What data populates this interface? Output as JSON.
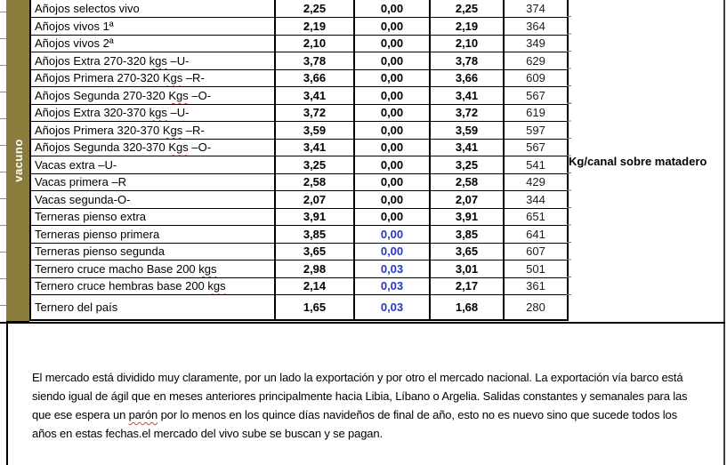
{
  "sidebar": {
    "category_label": "vacuno"
  },
  "table": {
    "rows": [
      {
        "label": "Añojos selectos vivo",
        "price": "2,25",
        "diff": "0,00",
        "diff_blue": false,
        "price2": "2,25",
        "weight": "374"
      },
      {
        "label": "Añojos vivos 1ª",
        "price": "2,19",
        "diff": "0,00",
        "diff_blue": false,
        "price2": "2,19",
        "weight": "364"
      },
      {
        "label": "Añojos vivos 2ª",
        "price": "2,10",
        "diff": "0,00",
        "diff_blue": false,
        "price2": "2,10",
        "weight": "349"
      },
      {
        "label": "Añojos Extra 270-320 kgs –U-",
        "price": "3,78",
        "diff": "0,00",
        "diff_blue": false,
        "price2": "3,78",
        "weight": "629"
      },
      {
        "label": "Añojos Primera 270-320 Kgs –R-",
        "price": "3,66",
        "diff": "0,00",
        "diff_blue": false,
        "price2": "3,66",
        "weight": "609"
      },
      {
        "label": "Añojos Segunda 270-320 Kgs –O-",
        "price": "3,41",
        "diff": "0,00",
        "diff_blue": false,
        "price2": "3,41",
        "weight": "567"
      },
      {
        "label": "Añojos Extra 320-370 kgs –U-",
        "price": "3,72",
        "diff": "0,00",
        "diff_blue": false,
        "price2": "3,72",
        "weight": "619"
      },
      {
        "label": "Añojos Primera 320-370 Kgs –R-",
        "price": "3,59",
        "diff": "0,00",
        "diff_blue": false,
        "price2": "3,59",
        "weight": "597"
      },
      {
        "label": "Añojos Segunda 320-370 Kgs –O-",
        "price": "3,41",
        "diff": "0,00",
        "diff_blue": false,
        "price2": "3,41",
        "weight": "567"
      },
      {
        "label": "Vacas extra –U-",
        "price": "3,25",
        "diff": "0,00",
        "diff_blue": false,
        "price2": "3,25",
        "weight": "541"
      },
      {
        "label": "Vacas primera –R",
        "price": "2,58",
        "diff": "0,00",
        "diff_blue": false,
        "price2": "2,58",
        "weight": "429"
      },
      {
        "label": "Vacas segunda-O-",
        "price": "2,07",
        "diff": "0,00",
        "diff_blue": false,
        "price2": "2,07",
        "weight": "344"
      },
      {
        "label": "Terneras pienso extra",
        "price": "3,91",
        "diff": "0,00",
        "diff_blue": false,
        "price2": "3,91",
        "weight": "651"
      },
      {
        "label": "Terneras pienso primera",
        "price": "3,85",
        "diff": "0,00",
        "diff_blue": true,
        "price2": "3,85",
        "weight": "641"
      },
      {
        "label": "Terneras pienso segunda",
        "price": "3,65",
        "diff": "0,00",
        "diff_blue": true,
        "price2": "3,65",
        "weight": "607"
      },
      {
        "label": "Ternero cruce macho Base 200 kgs",
        "price": "2,98",
        "diff": "0,03",
        "diff_blue": true,
        "price2": "3,01",
        "weight": "501"
      },
      {
        "label": "Ternero cruce hembras base 200 kgs",
        "price": "2,14",
        "diff": "0,03",
        "diff_blue": true,
        "price2": "2,17",
        "weight": "361"
      },
      {
        "label": "Ternero del país",
        "price": "1,65",
        "diff": "0,03",
        "diff_blue": true,
        "price2": "1,68",
        "weight": "280"
      }
    ]
  },
  "annotations": {
    "kg_note": "Kg/canal sobre matadero"
  },
  "comment": {
    "lines": [
      "El mercado está dividido muy claramente, por un lado la exportación y por otro el mercado nacional. La exportación vía barco está",
      "siendo igual de ágil que en meses anteriores principalmente hacia Libia, Líbano o Argelia. Salidas constantes y semanales para las",
      "que ese espera un parón por lo menos en los quince días navideños de final de año, esto no es nuevo sino que sucede todos los",
      "años en estas fechas.el mercado del vivo sube se buscan y se pagan."
    ],
    "misspelled": [
      "kgs",
      "Kgs",
      "parón"
    ]
  },
  "colors": {
    "category_bg": "#8a7c3b",
    "diff_blue": "#2437cd",
    "spell_red": "#e0392f"
  }
}
